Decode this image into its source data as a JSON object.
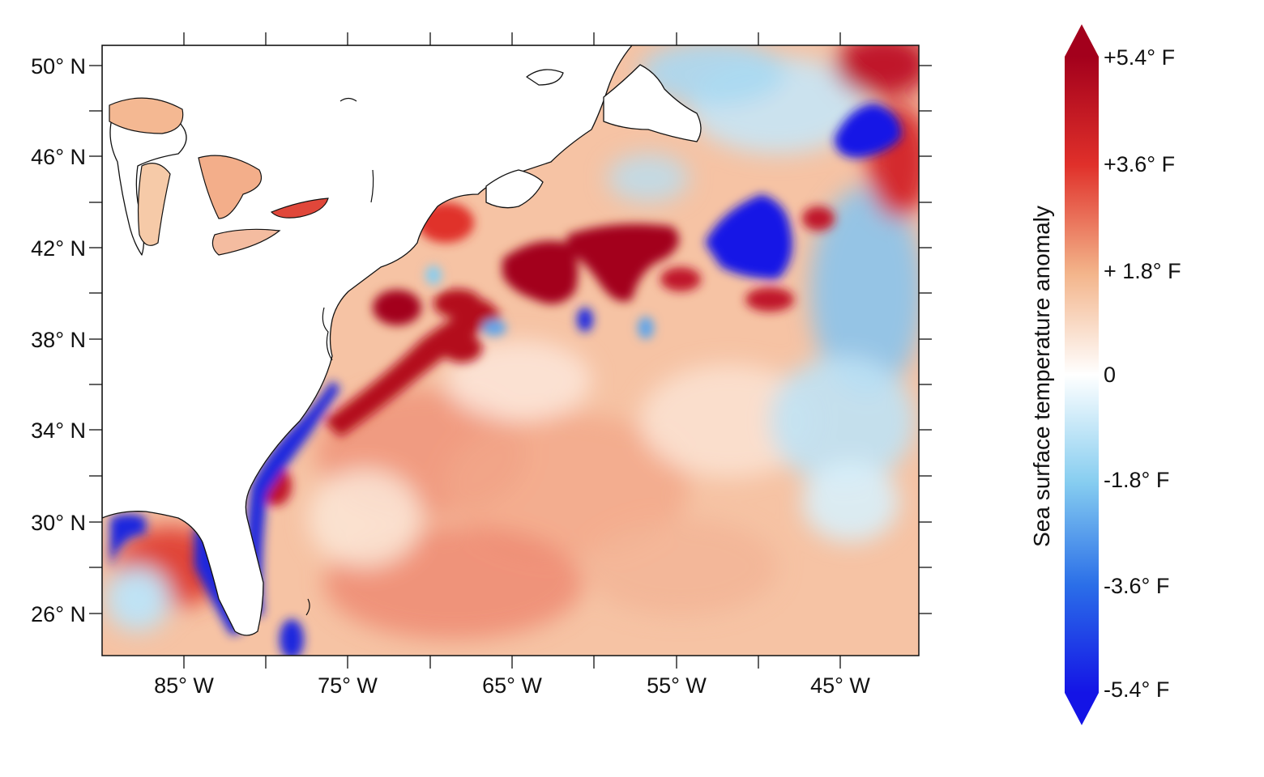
{
  "map": {
    "lat_labels": [
      "50° N",
      "46° N",
      "42° N",
      "38° N",
      "34° N",
      "30° N",
      "26° N"
    ],
    "lon_labels": [
      "85° W",
      "75° W",
      "65° W",
      "55° W",
      "45° W"
    ],
    "extent": {
      "lon_min": -90,
      "lon_max": -40,
      "lat_min": 24,
      "lat_max": 51
    }
  },
  "colorbar": {
    "title": "Sea surface temperature anomaly",
    "labels": [
      "+5.4° F",
      "+3.6° F",
      "+ 1.8° F",
      "0",
      "-1.8° F",
      "-3.6° F",
      "-5.4° F"
    ],
    "values": [
      5.4,
      3.6,
      1.8,
      0,
      -1.8,
      -3.6,
      -5.4
    ],
    "colors": [
      "#1414e6",
      "#2b6fe8",
      "#86cdf0",
      "#ffffff",
      "#f3b48a",
      "#e0302a",
      "#a3001c"
    ]
  }
}
